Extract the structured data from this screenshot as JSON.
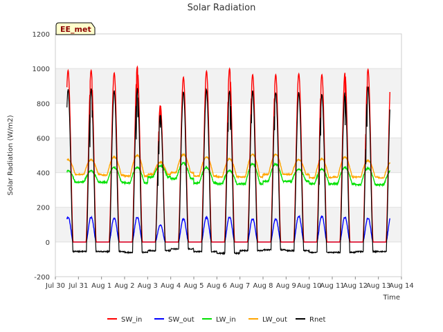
{
  "chart_data": {
    "type": "line",
    "title": "Solar Radiation",
    "xlabel": "Time",
    "ylabel": "Solar Radiation (W/m2)",
    "badge": "EE_met",
    "ylim": [
      -200,
      1200
    ],
    "yticks": [
      -200,
      0,
      200,
      400,
      600,
      800,
      1000,
      1200
    ],
    "xlim": [
      0,
      15
    ],
    "xticks": [
      0,
      1,
      2,
      3,
      4,
      5,
      6,
      7,
      8,
      9,
      10,
      11,
      12,
      13,
      14,
      15
    ],
    "xtick_labels": [
      "Jul 30",
      "Jul 31",
      "Aug 1",
      "Aug 2",
      "Aug 3",
      "Aug 4",
      "Aug 5",
      "Aug 6",
      "Aug 7",
      "Aug 8",
      "Aug 9",
      "Aug 10",
      "Aug 11",
      "Aug 12",
      "Aug 13",
      "Aug 14"
    ],
    "x_range_data": [
      0.5,
      14.5
    ],
    "background_bands": true,
    "grid": "horizontal",
    "legend_position": "bottom",
    "daily_peaks": [
      {
        "day": "Jul 31",
        "SW_in": 990,
        "SW_out": 140,
        "LW_in_min": 345,
        "LW_in_max": 410,
        "LW_out_min": 390,
        "LW_out_max": 475,
        "Rnet_max": 950,
        "Rnet_min": -55
      },
      {
        "day": "Aug 1",
        "SW_in": 975,
        "SW_out": 135,
        "LW_in_min": 345,
        "LW_in_max": 430,
        "LW_out_min": 385,
        "LW_out_max": 490,
        "Rnet_max": 940,
        "Rnet_min": -55
      },
      {
        "day": "Aug 2",
        "SW_in": 1010,
        "SW_out": 140,
        "LW_in_min": 340,
        "LW_in_max": 430,
        "LW_out_min": 380,
        "LW_out_max": 500,
        "Rnet_max": 960,
        "Rnet_min": -60
      },
      {
        "day": "Aug 3",
        "SW_in": 790,
        "SW_out": 95,
        "LW_in_min": 375,
        "LW_in_max": 440,
        "LW_out_min": 390,
        "LW_out_max": 460,
        "Rnet_max": 760,
        "Rnet_min": -50
      },
      {
        "day": "Aug 4",
        "SW_in": 950,
        "SW_out": 130,
        "LW_in_min": 365,
        "LW_in_max": 455,
        "LW_out_min": 400,
        "LW_out_max": 505,
        "Rnet_max": 920,
        "Rnet_min": -40
      },
      {
        "day": "Aug 5",
        "SW_in": 985,
        "SW_out": 140,
        "LW_in_min": 340,
        "LW_in_max": 430,
        "LW_out_min": 380,
        "LW_out_max": 490,
        "Rnet_max": 945,
        "Rnet_min": -55
      },
      {
        "day": "Aug 6",
        "SW_in": 1000,
        "SW_out": 140,
        "LW_in_min": 335,
        "LW_in_max": 410,
        "LW_out_min": 375,
        "LW_out_max": 480,
        "Rnet_max": 945,
        "Rnet_min": -65
      },
      {
        "day": "Aug 7",
        "SW_in": 965,
        "SW_out": 130,
        "LW_in_min": 335,
        "LW_in_max": 450,
        "LW_out_min": 375,
        "LW_out_max": 505,
        "Rnet_max": 930,
        "Rnet_min": -50
      },
      {
        "day": "Aug 8",
        "SW_in": 965,
        "SW_out": 130,
        "LW_in_min": 350,
        "LW_in_max": 450,
        "LW_out_min": 390,
        "LW_out_max": 505,
        "Rnet_max": 925,
        "Rnet_min": -45
      },
      {
        "day": "Aug 9",
        "SW_in": 970,
        "SW_out": 145,
        "LW_in_min": 350,
        "LW_in_max": 420,
        "LW_out_min": 390,
        "LW_out_max": 475,
        "Rnet_max": 925,
        "Rnet_min": -50
      },
      {
        "day": "Aug 10",
        "SW_in": 965,
        "SW_out": 145,
        "LW_in_min": 335,
        "LW_in_max": 420,
        "LW_out_min": 370,
        "LW_out_max": 480,
        "Rnet_max": 920,
        "Rnet_min": -60
      },
      {
        "day": "Aug 11",
        "SW_in": 975,
        "SW_out": 140,
        "LW_in_min": 335,
        "LW_in_max": 430,
        "LW_out_min": 375,
        "LW_out_max": 490,
        "Rnet_max": 930,
        "Rnet_min": -60
      },
      {
        "day": "Aug 12",
        "SW_in": 995,
        "SW_out": 135,
        "LW_in_min": 330,
        "LW_in_max": 425,
        "LW_out_min": 375,
        "LW_out_max": 470,
        "Rnet_max": 945,
        "Rnet_min": -55
      },
      {
        "day": "Aug 13",
        "SW_in": 960,
        "SW_out": 145,
        "LW_in_min": 330,
        "LW_in_max": 410,
        "LW_out_min": 370,
        "LW_out_max": 460,
        "Rnet_max": 920,
        "Rnet_min": -55
      }
    ],
    "series": [
      {
        "name": "SW_in",
        "color": "#ff0000"
      },
      {
        "name": "SW_out",
        "color": "#0000ff"
      },
      {
        "name": "LW_in",
        "color": "#00e000"
      },
      {
        "name": "LW_out",
        "color": "#ffa500"
      },
      {
        "name": "Rnet",
        "color": "#000000"
      }
    ]
  }
}
